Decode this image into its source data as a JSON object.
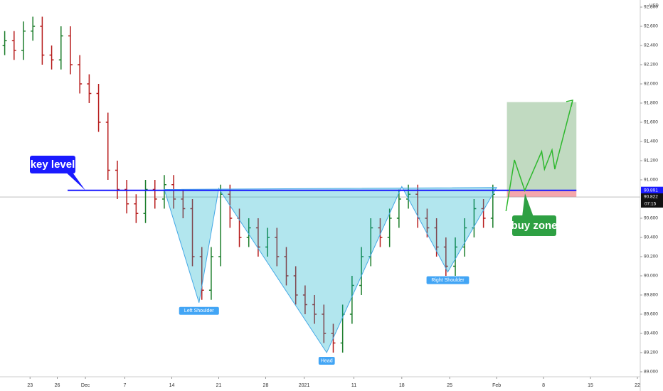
{
  "chart_data": {
    "type": "ohlc",
    "currency": "USD",
    "xlim": [
      0,
      68.2
    ],
    "ylim": [
      88.948,
      92.874
    ],
    "grid": false,
    "up_color": "#1b7d2a",
    "down_color": "#b71c1c",
    "xticks": [
      {
        "value": 3.2,
        "label": "23"
      },
      {
        "value": 6.1,
        "label": "26"
      },
      {
        "value": 9.1,
        "label": "Dec"
      },
      {
        "value": 13.3,
        "label": "7"
      },
      {
        "value": 18.3,
        "label": "14"
      },
      {
        "value": 23.3,
        "label": "21"
      },
      {
        "value": 28.3,
        "label": "28"
      },
      {
        "value": 32.4,
        "label": "2021"
      },
      {
        "value": 37.7,
        "label": "11"
      },
      {
        "value": 42.8,
        "label": "18"
      },
      {
        "value": 47.9,
        "label": "25"
      },
      {
        "value": 52.9,
        "label": "Feb"
      },
      {
        "value": 57.9,
        "label": "8"
      },
      {
        "value": 62.9,
        "label": "15"
      },
      {
        "value": 67.9,
        "label": "22"
      }
    ],
    "yticks": [
      {
        "value": 92.8,
        "label": "92.800"
      },
      {
        "value": 92.6,
        "label": "92.600"
      },
      {
        "value": 92.4,
        "label": "92.400"
      },
      {
        "value": 92.2,
        "label": "92.200"
      },
      {
        "value": 92.0,
        "label": "92.000"
      },
      {
        "value": 91.8,
        "label": "91.800"
      },
      {
        "value": 91.6,
        "label": "91.600"
      },
      {
        "value": 91.4,
        "label": "91.400"
      },
      {
        "value": 91.2,
        "label": "91.200"
      },
      {
        "value": 91.0,
        "label": "91.000"
      },
      {
        "value": 90.6,
        "label": "90.600"
      },
      {
        "value": 90.4,
        "label": "90.400"
      },
      {
        "value": 90.2,
        "label": "90.200"
      },
      {
        "value": 90.0,
        "label": "90.000"
      },
      {
        "value": 89.8,
        "label": "89.800"
      },
      {
        "value": 89.6,
        "label": "89.600"
      },
      {
        "value": 89.4,
        "label": "89.400"
      },
      {
        "value": 89.2,
        "label": "89.200"
      },
      {
        "value": 89.0,
        "label": "89.000"
      }
    ],
    "x": [
      0.5,
      1.5,
      2.5,
      3.5,
      4.5,
      5.5,
      6.5,
      7.5,
      8.5,
      9.5,
      10.5,
      11.5,
      12.5,
      13.5,
      14.5,
      15.5,
      16.5,
      17.5,
      18.5,
      19.5,
      20.5,
      21.5,
      22.5,
      23.5,
      24.5,
      25.5,
      26.5,
      27.5,
      28.5,
      29.5,
      30.5,
      31.5,
      32.5,
      33.5,
      34.5,
      35.5,
      36.5,
      37.5,
      38.5,
      39.5,
      40.5,
      41.5,
      42.5,
      43.5,
      44.5,
      45.5,
      46.5,
      47.5,
      48.5,
      49.5,
      50.5,
      51.5,
      52.5
    ],
    "open": [
      92.4,
      92.45,
      92.35,
      92.55,
      92.6,
      92.3,
      92.25,
      92.5,
      92.2,
      92.0,
      91.9,
      91.6,
      91.1,
      90.9,
      90.75,
      90.65,
      90.9,
      90.8,
      90.95,
      90.8,
      90.7,
      90.2,
      89.85,
      90.2,
      90.85,
      90.6,
      90.4,
      90.5,
      90.3,
      90.4,
      90.2,
      90.0,
      89.8,
      89.7,
      89.6,
      89.4,
      89.3,
      89.6,
      89.9,
      90.2,
      90.5,
      90.4,
      90.6,
      90.8,
      90.85,
      90.6,
      90.5,
      90.3,
      90.1,
      90.3,
      90.5,
      90.7,
      90.6
    ],
    "high": [
      92.55,
      92.55,
      92.65,
      92.7,
      92.7,
      92.4,
      92.6,
      92.6,
      92.3,
      92.1,
      92.0,
      91.7,
      91.2,
      91.0,
      90.85,
      91.0,
      91.0,
      91.05,
      91.05,
      90.9,
      90.8,
      90.3,
      90.3,
      90.95,
      90.95,
      90.7,
      90.6,
      90.6,
      90.5,
      90.5,
      90.3,
      90.1,
      89.9,
      89.8,
      89.7,
      89.5,
      89.7,
      90.0,
      90.3,
      90.6,
      90.6,
      90.7,
      90.9,
      90.95,
      90.95,
      90.7,
      90.6,
      90.4,
      90.4,
      90.6,
      90.8,
      90.8,
      90.95
    ],
    "low": [
      92.3,
      92.25,
      92.25,
      92.45,
      92.2,
      92.15,
      92.15,
      92.1,
      91.9,
      91.8,
      91.5,
      91.0,
      90.8,
      90.65,
      90.55,
      90.55,
      90.7,
      90.7,
      90.7,
      90.6,
      90.1,
      89.75,
      89.75,
      90.1,
      90.5,
      90.3,
      90.3,
      90.2,
      90.2,
      90.1,
      89.9,
      89.7,
      89.6,
      89.5,
      89.3,
      89.2,
      89.2,
      89.5,
      89.8,
      90.1,
      90.3,
      90.3,
      90.5,
      90.7,
      90.5,
      90.4,
      90.2,
      90.0,
      90.0,
      90.2,
      90.4,
      90.5,
      90.5
    ],
    "close": [
      92.45,
      92.35,
      92.55,
      92.6,
      92.3,
      92.25,
      92.5,
      92.2,
      92.0,
      91.9,
      91.6,
      91.1,
      90.9,
      90.75,
      90.65,
      90.9,
      90.8,
      90.95,
      90.8,
      90.7,
      90.2,
      89.85,
      90.2,
      90.85,
      90.6,
      90.4,
      90.5,
      90.3,
      90.4,
      90.2,
      90.0,
      89.8,
      89.7,
      89.6,
      89.4,
      89.3,
      89.6,
      89.9,
      90.2,
      90.5,
      90.4,
      90.6,
      90.8,
      90.85,
      90.6,
      90.5,
      90.3,
      90.1,
      90.3,
      90.5,
      90.7,
      90.6,
      90.85
    ],
    "key_level": {
      "label": "key level",
      "value": 90.891,
      "price_label": "90.891",
      "x_start": 7.2,
      "x_end": 61.4,
      "color": "#1a1aff"
    },
    "last_price": {
      "value": 90.822,
      "price_label": "90.822",
      "countdown": "07:15"
    },
    "pattern": {
      "x": [
        17.5,
        21.2,
        23.3,
        34.8,
        42.8,
        47.7,
        52.9
      ],
      "y": [
        90.9,
        89.72,
        90.91,
        89.2,
        90.93,
        90.04,
        90.92
      ],
      "labels": [
        {
          "text": "Left Shoulder",
          "point": 1
        },
        {
          "text": "Head",
          "point": 3
        },
        {
          "text": "Right Shoulder",
          "point": 5
        }
      ]
    },
    "target_box": {
      "x_start": 54.0,
      "x_end": 61.4,
      "top": 91.81,
      "entry": 90.891,
      "stop": 90.822
    },
    "projection": {
      "x": [
        53.9,
        54.8,
        55.9,
        57.7,
        58.0,
        58.8,
        59.1,
        61.0
      ],
      "y": [
        90.674,
        91.207,
        90.889,
        91.296,
        91.111,
        91.311,
        91.111,
        91.83
      ]
    },
    "buy_zone_label": "buy zone"
  }
}
